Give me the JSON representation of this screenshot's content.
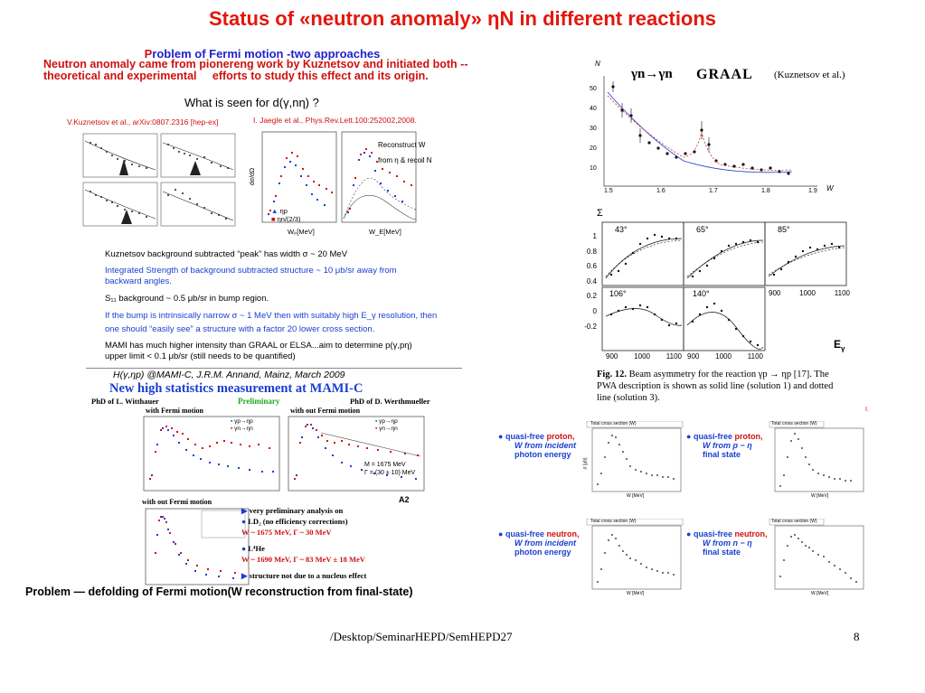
{
  "slide": {
    "title": "Status of «neutron anomaly» ƞN in different reactions",
    "subtitle_first": "P",
    "subtitle_rest": "roblem of Fermi motion -two approaches",
    "intro_line1": "Neutron anomaly came from pionereng work by Kuznetsov and initiated both --",
    "intro_line2": "theoretical and experimental     efforts to study this effect and its origin.",
    "problem_line": "Problem — defolding of Fermi motion(W reconstruction from final-state)",
    "footer_path": "/Desktop/SeminarHEPD/SemHEPD27",
    "page_number": "8"
  },
  "kuznetsov_panel": {
    "heading": "What is seen for d(γ,nη) ?",
    "ref_left": "V.Kuznetsov et al., arXiv:0807.2316 [hep-ex]",
    "ref_right": "I. Jaegle et al., Phys.Rev.Lett.100:252002,2008.",
    "legend_a": "ηp",
    "legend_b": "ηn/(2/3)",
    "reconstruct_1": "Reconstruct W",
    "reconstruct_2": "from η & recoil N",
    "x_left": "Wₚ[MeV]",
    "x_right": "W_E[MeV]",
    "y_label": "dσ/dΩ",
    "notes": {
      "n1": "Kuznetsov background subtracted “peak” has width σ ~ 20 MeV",
      "n2": "Integrated Strength of background subtracted structure ~ 10 μb/sr away from",
      "n2b": "backward angles.",
      "n3": "S₁₁ background ~ 0.5 μb/sr in bump region.",
      "n4": "If the bump is intrinsically narrow σ ~ 1 MeV then with suitably high E_γ resolution, then",
      "n4b": "one should “easily see” a structure with a factor 20 lower cross section.",
      "n5": "MAMI has much higher intensity than GRAAL or ELSA...aim to determine p(γ,pη)",
      "n5b": "upper limit < 0.1   μb/sr  (still needs to be quantified)"
    }
  },
  "mami_panel": {
    "caption": "H(γ,ηp) @MAMI-C,  J.R.M. Annand, Mainz, March 2009",
    "heading": "New high statistics measurement at MAMI-C",
    "phd_left": "PhD of L. Witthauer",
    "preliminary": "Preliminary",
    "phd_right": "PhD of D. Werthmueller",
    "with_fermi": "with Fermi motion",
    "without_fermi": "with out Fermi motion",
    "without_fermi_2": "with out Fermi motion",
    "fit_label_1": "M = 1675 MeV",
    "fit_label_2": "Γ = (30 ± 10) MeV",
    "legend_a": "γp→ηp",
    "legend_b": "γn→ηn",
    "a2": "A2",
    "b1": "very preliminary analysis on",
    "b2": "LD₂ (no efficiency corrections)",
    "b3": "W ~ 1675 MeV, Γ ~ 30 MeV",
    "b4": "L⁴He",
    "b5": "W ~ 1690 MeV, Γ ~ 83 MeV ± 18 MeV",
    "b6": "structure not due to a nucleus effect"
  },
  "graal_panel": {
    "reaction": "γn→γn",
    "label": "GRAAL",
    "authors": "(Kuznetsov et al.)",
    "y_axis": "N",
    "x_axis": "W",
    "y_ticks": [
      "50",
      "40",
      "30",
      "20",
      "10"
    ],
    "x_ticks": [
      "1.5",
      "1.6",
      "1.7",
      "1.8",
      "1.9"
    ]
  },
  "sigma_panel": {
    "symbol": "Σ",
    "angles": [
      "43°",
      "65°",
      "85°",
      "106°",
      "140°"
    ],
    "y_ticks": [
      "1",
      "0.8",
      "0.6",
      "0.4",
      "0.2",
      "0",
      "-0.2"
    ],
    "x_ticks_a": [
      "900",
      "1000",
      "1100"
    ],
    "x_ticks_b": [
      "900",
      "1000",
      "1100"
    ],
    "x_ticks_c": [
      "900",
      "1000",
      "1100"
    ],
    "egamma": "E",
    "egamma_sub": "γ",
    "fig_caption_bold": "Fig. 12.",
    "fig_caption_1": " Beam asymmetry for the reaction γp → ηp [17]. The",
    "fig_caption_2": "PWA description is shown as solid line (solution 1) and dotted",
    "fig_caption_3": "line (solution 3).",
    "stray_mark": "I."
  },
  "quasi_free": {
    "box_title": "Total cross section (W)",
    "rows": [
      {
        "a1": "quasi-free ",
        "a2": "proton,",
        "a3": "W from incident",
        "a4": "photon energy",
        "b1": "quasi-free ",
        "b2": "proton,",
        "b3": "W from p − η",
        "b4": "final state"
      },
      {
        "a1": "quasi-free ",
        "a2": "neutron,",
        "a3": "W from incident",
        "a4": "photon energy",
        "b1": "quasi-free ",
        "b2": "neutron,",
        "b3": "W from n − η",
        "b4": "final state"
      }
    ],
    "x_label": "W [MeV]",
    "y_label": "σ [μb]"
  }
}
